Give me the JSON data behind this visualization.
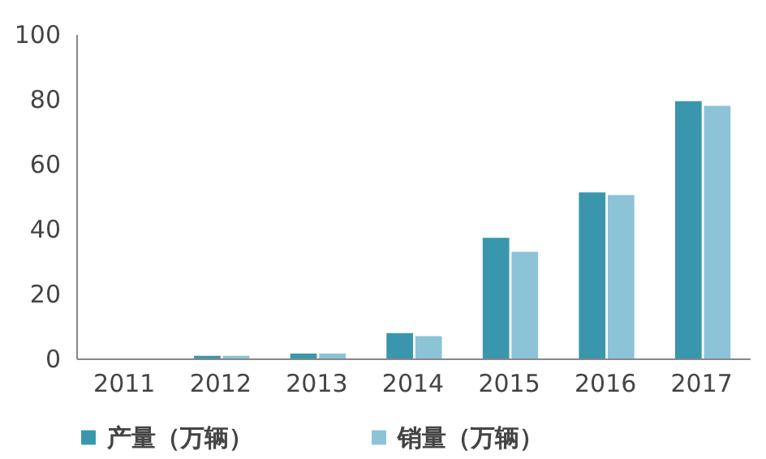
{
  "chart_data": {
    "type": "bar",
    "categories": [
      "2011",
      "2012",
      "2013",
      "2014",
      "2015",
      "2016",
      "2017"
    ],
    "series": [
      {
        "name": "产量（万辆）",
        "color": "#3a96ac",
        "values": [
          null,
          0.8,
          1.5,
          7.8,
          37.2,
          51.2,
          79.3
        ]
      },
      {
        "name": "销量（万辆）",
        "color": "#8cc3d6",
        "values": [
          null,
          0.8,
          1.5,
          6.9,
          32.9,
          50.4,
          77.9
        ]
      }
    ],
    "ylim": [
      0,
      100
    ],
    "yticks": [
      0,
      20,
      40,
      60,
      80,
      100
    ],
    "grid": false,
    "legend": "bottom"
  }
}
